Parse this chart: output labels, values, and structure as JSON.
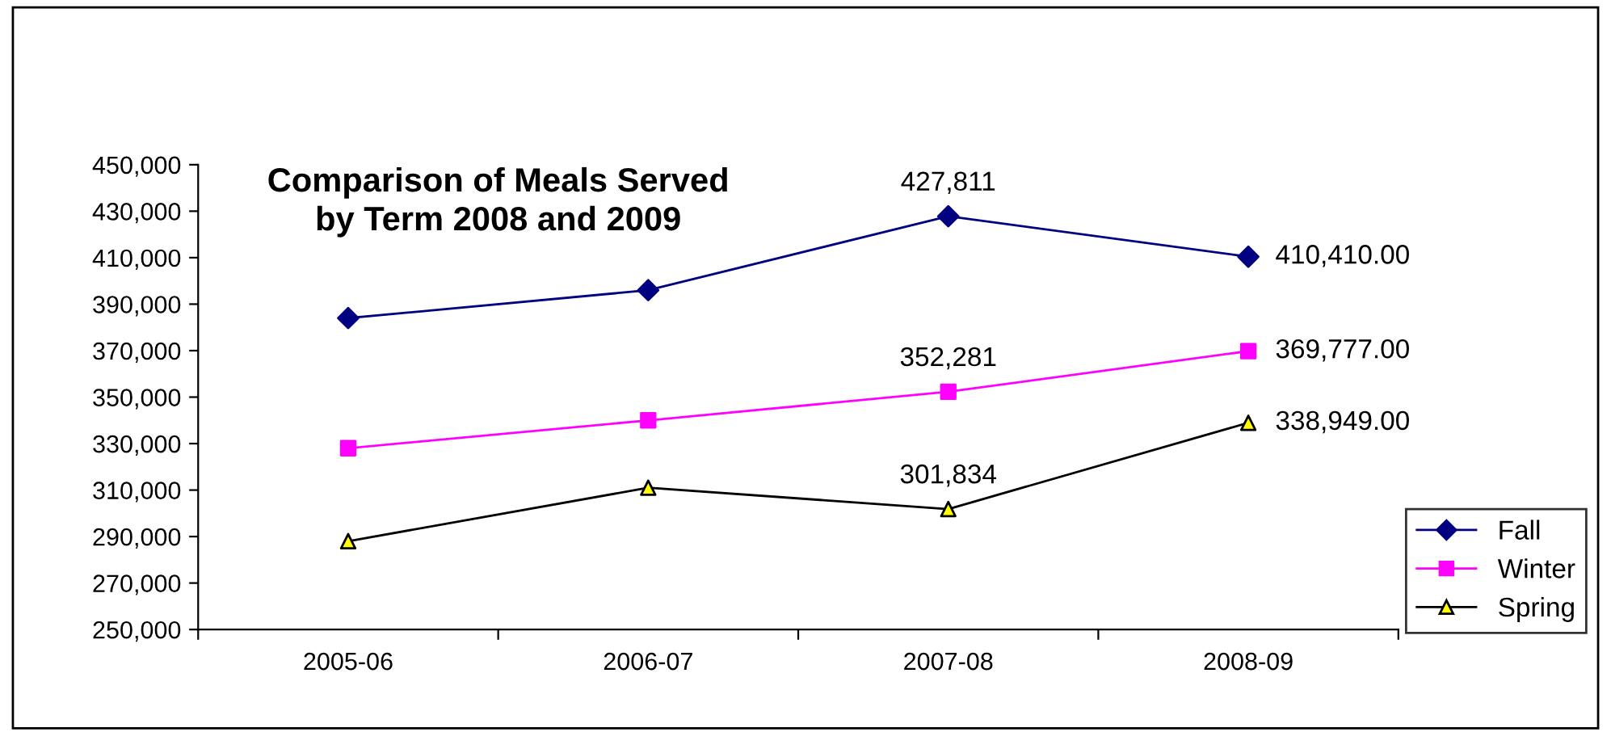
{
  "chart_data": {
    "type": "line",
    "title": "Comparison of Meals Served\nby Term 2008 and 2009",
    "categories": [
      "2005-06",
      "2006-07",
      "2007-08",
      "2008-09"
    ],
    "series": [
      {
        "name": "Fall",
        "color": "#000080",
        "marker": "diamond",
        "values": [
          384000,
          396000,
          427811,
          410410
        ],
        "value_labels": [
          null,
          null,
          "427,811",
          "410,410.00"
        ]
      },
      {
        "name": "Winter",
        "color": "#ff00ff",
        "marker": "square",
        "values": [
          328000,
          340000,
          352281,
          369777
        ],
        "value_labels": [
          null,
          null,
          "352,281",
          "369,777.00"
        ]
      },
      {
        "name": "Spring",
        "color": "#000000",
        "colors": [
          "#ffff00",
          "#ffff00",
          "#ffff00",
          "#ffff00"
        ],
        "marker": "triangle",
        "values": [
          288000,
          311000,
          301834,
          338949
        ],
        "value_labels": [
          null,
          null,
          "301,834",
          "338,949.00"
        ]
      }
    ],
    "ylim": [
      250000,
      450000
    ],
    "yticks": [
      {
        "value": 250000,
        "label": "250,000"
      },
      {
        "value": 270000,
        "label": "270,000"
      },
      {
        "value": 290000,
        "label": "290,000"
      },
      {
        "value": 310000,
        "label": "310,000"
      },
      {
        "value": 330000,
        "label": "330,000"
      },
      {
        "value": 350000,
        "label": "350,000"
      },
      {
        "value": 370000,
        "label": "370,000"
      },
      {
        "value": 390000,
        "label": "390,000"
      },
      {
        "value": 410000,
        "label": "410,000"
      },
      {
        "value": 430000,
        "label": "430,000"
      },
      {
        "value": 450000,
        "label": "450,000"
      }
    ],
    "grid": false,
    "legend": "right"
  }
}
